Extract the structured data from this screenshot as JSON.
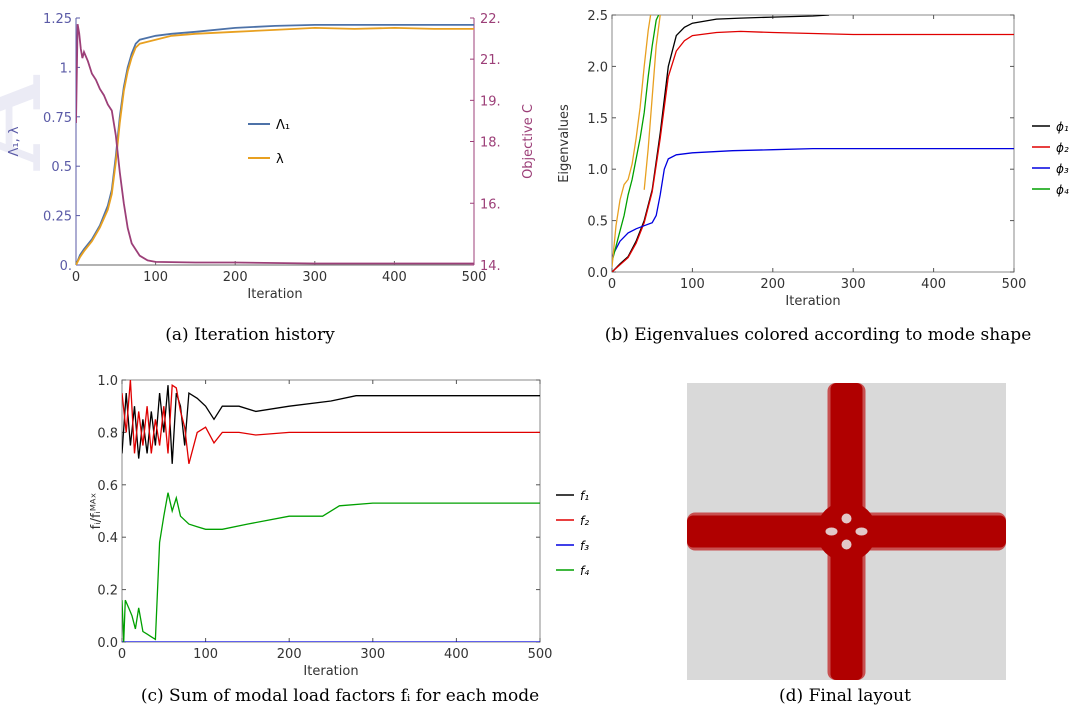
{
  "chart_data": [
    {
      "id": "a",
      "type": "line",
      "caption": "(a) Iteration history",
      "xlabel": "Iteration",
      "ylabel": "Λ₁, λ",
      "y2label": "Objective C",
      "xlim": [
        0,
        500
      ],
      "ylim": [
        0,
        1.25
      ],
      "y2lim": [
        14,
        22
      ],
      "xticks": [
        0,
        100,
        200,
        300,
        400,
        500
      ],
      "yticks": [
        {
          "v": 0,
          "t": "0."
        },
        {
          "v": 0.25,
          "t": "0.25"
        },
        {
          "v": 0.5,
          "t": "0.5"
        },
        {
          "v": 0.75,
          "t": "0.75"
        },
        {
          "v": 1.0,
          "t": "1."
        },
        {
          "v": 1.25,
          "t": "1.25"
        }
      ],
      "y2ticks": [
        {
          "v": 14,
          "t": "14."
        },
        {
          "v": 16,
          "t": "16."
        },
        {
          "v": 18,
          "t": "18."
        },
        {
          "v": 19.333,
          "t": "19."
        },
        {
          "v": 20.667,
          "t": "21."
        },
        {
          "v": 22,
          "t": "22."
        }
      ],
      "legend": [
        {
          "name": "Λ₁",
          "color": "#4d72a8"
        },
        {
          "name": "λ",
          "color": "#e8a020"
        }
      ],
      "colors": {
        "axis_left": "#5a5aa6",
        "axis_right": "#9c3f78"
      },
      "series": [
        {
          "name": "Λ₁",
          "axis": "left",
          "color": "#4d72a8",
          "x": [
            0,
            5,
            10,
            20,
            30,
            40,
            45,
            50,
            55,
            60,
            65,
            70,
            75,
            80,
            90,
            100,
            120,
            150,
            200,
            250,
            300,
            350,
            400,
            450,
            500
          ],
          "y": [
            0.0,
            0.05,
            0.08,
            0.13,
            0.2,
            0.3,
            0.38,
            0.55,
            0.75,
            0.9,
            1.0,
            1.07,
            1.12,
            1.14,
            1.15,
            1.16,
            1.17,
            1.18,
            1.2,
            1.21,
            1.215,
            1.215,
            1.215,
            1.215,
            1.215
          ]
        },
        {
          "name": "λ",
          "axis": "left",
          "color": "#e8a020",
          "x": [
            0,
            5,
            10,
            20,
            30,
            40,
            45,
            50,
            55,
            60,
            65,
            70,
            75,
            80,
            90,
            100,
            120,
            150,
            200,
            250,
            300,
            350,
            400,
            450,
            500
          ],
          "y": [
            0.0,
            0.04,
            0.07,
            0.12,
            0.19,
            0.28,
            0.36,
            0.52,
            0.72,
            0.88,
            0.98,
            1.05,
            1.1,
            1.12,
            1.13,
            1.14,
            1.16,
            1.17,
            1.18,
            1.19,
            1.2,
            1.195,
            1.2,
            1.195,
            1.195
          ]
        },
        {
          "name": "Objective C",
          "axis": "right",
          "color": "#9c3f78",
          "x": [
            0,
            2,
            4,
            6,
            8,
            10,
            15,
            20,
            25,
            30,
            35,
            40,
            45,
            50,
            55,
            60,
            65,
            70,
            80,
            90,
            100,
            150,
            200,
            300,
            400,
            500
          ],
          "y": [
            18.6,
            21.8,
            21.5,
            21.0,
            20.7,
            20.9,
            20.6,
            20.2,
            20.0,
            19.7,
            19.5,
            19.2,
            19.0,
            18.2,
            17.0,
            16.0,
            15.2,
            14.7,
            14.3,
            14.15,
            14.1,
            14.08,
            14.08,
            14.05,
            14.05,
            14.05
          ]
        }
      ]
    },
    {
      "id": "b",
      "type": "line",
      "caption": "(b) Eigenvalues colored according to mode shape",
      "xlabel": "Iteration",
      "ylabel": "Eigenvalues",
      "xlim": [
        0,
        500
      ],
      "ylim": [
        0,
        2.5
      ],
      "xticks": [
        0,
        100,
        200,
        300,
        400,
        500
      ],
      "yticks": [
        {
          "v": 0,
          "t": "0.0"
        },
        {
          "v": 0.5,
          "t": "0.5"
        },
        {
          "v": 1.0,
          "t": "1.0"
        },
        {
          "v": 1.5,
          "t": "1.5"
        },
        {
          "v": 2.0,
          "t": "2.0"
        },
        {
          "v": 2.5,
          "t": "2.5"
        }
      ],
      "legend": [
        {
          "name": "ϕ₁",
          "color": "#000000"
        },
        {
          "name": "ϕ₂",
          "color": "#e00000"
        },
        {
          "name": "ϕ₃",
          "color": "#0000e0"
        },
        {
          "name": "ϕ₄",
          "color": "#00a000"
        }
      ],
      "series": [
        {
          "name": "ϕ₁",
          "color": "#000000",
          "x": [
            0,
            10,
            20,
            30,
            40,
            50,
            60,
            70,
            80,
            90,
            100,
            130,
            160,
            200,
            250,
            270
          ],
          "y": [
            0.0,
            0.08,
            0.15,
            0.3,
            0.5,
            0.8,
            1.35,
            2.0,
            2.3,
            2.38,
            2.42,
            2.46,
            2.47,
            2.48,
            2.49,
            2.5
          ]
        },
        {
          "name": "ϕ₂",
          "color": "#e00000",
          "x": [
            0,
            10,
            20,
            30,
            40,
            50,
            60,
            70,
            80,
            90,
            100,
            130,
            160,
            200,
            250,
            300,
            400,
            500
          ],
          "y": [
            0.0,
            0.07,
            0.14,
            0.28,
            0.48,
            0.78,
            1.3,
            1.9,
            2.15,
            2.25,
            2.3,
            2.33,
            2.34,
            2.33,
            2.32,
            2.31,
            2.31,
            2.31
          ]
        },
        {
          "name": "ϕ₃",
          "color": "#0000e0",
          "x": [
            0,
            10,
            20,
            30,
            40,
            50,
            55,
            60,
            65,
            70,
            80,
            100,
            150,
            200,
            250,
            300,
            400,
            500
          ],
          "y": [
            0.15,
            0.3,
            0.38,
            0.42,
            0.45,
            0.48,
            0.55,
            0.75,
            1.0,
            1.1,
            1.14,
            1.16,
            1.18,
            1.19,
            1.2,
            1.2,
            1.2,
            1.2
          ]
        },
        {
          "name": "ϕ₄",
          "color": "#00a000",
          "x": [
            0,
            5,
            10,
            15,
            20,
            25,
            30,
            35,
            40,
            45,
            50,
            55,
            58
          ],
          "y": [
            0.1,
            0.25,
            0.4,
            0.55,
            0.75,
            0.9,
            1.1,
            1.3,
            1.55,
            1.9,
            2.2,
            2.45,
            2.5
          ]
        },
        {
          "name": "",
          "color": "#e8a020",
          "x": [
            0,
            5,
            10,
            15,
            20,
            25,
            30,
            35,
            40,
            45,
            48
          ],
          "y": [
            0.05,
            0.45,
            0.7,
            0.85,
            0.9,
            1.05,
            1.3,
            1.6,
            2.0,
            2.35,
            2.5
          ]
        },
        {
          "name": "",
          "color": "#e8a020",
          "x": [
            40,
            45,
            50,
            55,
            60
          ],
          "y": [
            0.8,
            1.2,
            1.7,
            2.2,
            2.5
          ]
        }
      ]
    },
    {
      "id": "c",
      "type": "line",
      "caption": "(c) Sum of modal load factors fᵢ for each mode",
      "xlabel": "Iteration",
      "ylabel": "fᵢ/fᵢᴹᴬˣ",
      "xlim": [
        0,
        500
      ],
      "ylim": [
        0,
        1.0
      ],
      "xticks": [
        0,
        100,
        200,
        300,
        400,
        500
      ],
      "yticks": [
        {
          "v": 0,
          "t": "0.0"
        },
        {
          "v": 0.2,
          "t": "0.2"
        },
        {
          "v": 0.4,
          "t": "0.4"
        },
        {
          "v": 0.6,
          "t": "0.6"
        },
        {
          "v": 0.8,
          "t": "0.8"
        },
        {
          "v": 1.0,
          "t": "1.0"
        }
      ],
      "legend": [
        {
          "name": "f₁",
          "color": "#000000"
        },
        {
          "name": "f₂",
          "color": "#e00000"
        },
        {
          "name": "f₃",
          "color": "#0000e0"
        },
        {
          "name": "f₄",
          "color": "#00a000"
        }
      ],
      "series": [
        {
          "name": "f₁",
          "color": "#000000",
          "x": [
            0,
            5,
            10,
            15,
            20,
            25,
            30,
            35,
            40,
            45,
            50,
            55,
            60,
            65,
            70,
            75,
            80,
            90,
            100,
            110,
            120,
            140,
            160,
            200,
            250,
            280,
            300,
            400,
            500
          ],
          "y": [
            0.72,
            0.95,
            0.75,
            0.9,
            0.7,
            0.85,
            0.72,
            0.88,
            0.75,
            0.95,
            0.8,
            0.98,
            0.68,
            0.95,
            0.9,
            0.75,
            0.95,
            0.93,
            0.9,
            0.85,
            0.9,
            0.9,
            0.88,
            0.9,
            0.92,
            0.94,
            0.94,
            0.94,
            0.94
          ]
        },
        {
          "name": "f₂",
          "color": "#e00000",
          "x": [
            0,
            5,
            10,
            15,
            20,
            25,
            30,
            35,
            40,
            45,
            50,
            55,
            60,
            65,
            70,
            75,
            80,
            90,
            100,
            110,
            120,
            140,
            160,
            200,
            250,
            300,
            400,
            500
          ],
          "y": [
            0.95,
            0.8,
            1.0,
            0.72,
            0.88,
            0.75,
            0.9,
            0.72,
            0.85,
            0.75,
            0.9,
            0.72,
            0.98,
            0.97,
            0.88,
            0.82,
            0.68,
            0.8,
            0.82,
            0.76,
            0.8,
            0.8,
            0.79,
            0.8,
            0.8,
            0.8,
            0.8,
            0.8
          ]
        },
        {
          "name": "f₃",
          "color": "#0000e0",
          "x": [
            0,
            10,
            20,
            30,
            40,
            100,
            200,
            300,
            400,
            500
          ],
          "y": [
            0.0,
            0.0,
            0.0,
            0.0,
            0.0,
            0.0,
            0.0,
            0.0,
            0.0,
            0.0
          ]
        },
        {
          "name": "f₄",
          "color": "#00a000",
          "x": [
            0,
            2,
            4,
            8,
            12,
            16,
            20,
            25,
            30,
            35,
            40,
            45,
            50,
            55,
            60,
            65,
            70,
            80,
            90,
            100,
            120,
            150,
            200,
            240,
            260,
            300,
            400,
            500
          ],
          "y": [
            0.16,
            0.0,
            0.16,
            0.13,
            0.1,
            0.05,
            0.13,
            0.04,
            0.03,
            0.02,
            0.01,
            0.38,
            0.48,
            0.57,
            0.5,
            0.55,
            0.48,
            0.45,
            0.44,
            0.43,
            0.43,
            0.45,
            0.48,
            0.48,
            0.52,
            0.53,
            0.53,
            0.53
          ]
        }
      ]
    },
    {
      "id": "d",
      "type": "heatmap",
      "caption": "(d) Final layout",
      "colors": {
        "background": "#d9d9d9",
        "material": "#b00000",
        "material_edge": "#c85050"
      }
    }
  ]
}
